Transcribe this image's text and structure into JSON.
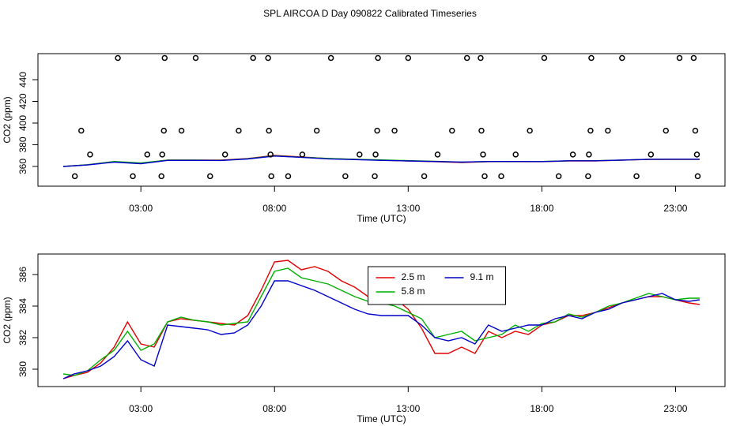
{
  "title": "SPL AIRCOA D  Day 090822  Calibrated Timeseries",
  "chart_data": [
    {
      "type": "line",
      "xlabel": "Time (UTC)",
      "ylabel": "CO2 (ppm)",
      "xlim": [
        -0.85,
        24.85
      ],
      "xticks": [
        {
          "value": 3,
          "label": "03:00"
        },
        {
          "value": 8,
          "label": "08:00"
        },
        {
          "value": 13,
          "label": "13:00"
        },
        {
          "value": 18,
          "label": "18:00"
        },
        {
          "value": 23,
          "label": "23:00"
        }
      ],
      "ylim": [
        341.8,
        464
      ],
      "yticks": [
        360,
        380,
        400,
        420,
        440
      ],
      "x": [
        0.1,
        1,
        2,
        3,
        4,
        5,
        6,
        7,
        8,
        9,
        10,
        11,
        12,
        13,
        14,
        15,
        16,
        17,
        18,
        19,
        20,
        21,
        22,
        23,
        23.9
      ],
      "series": [
        {
          "color": "#e00000",
          "values": [
            360,
            361.5,
            364.4,
            362.9,
            365.8,
            365.8,
            365.8,
            367.3,
            370.2,
            368.7,
            367.3,
            366.5,
            365.8,
            365.1,
            364.4,
            363.6,
            364.4,
            364.4,
            364.4,
            365.1,
            365.1,
            365.8,
            366.5,
            366.5,
            366.5
          ]
        },
        {
          "color": "#00b000",
          "values": [
            360,
            361.6,
            364.6,
            363.2,
            365.9,
            365.8,
            365.6,
            367.1,
            369.8,
            368.5,
            367.4,
            366.6,
            366.0,
            365.4,
            364.8,
            364.0,
            364.5,
            364.6,
            364.6,
            365.2,
            365.3,
            365.9,
            366.6,
            366.6,
            366.6
          ]
        },
        {
          "color": "#0000cc",
          "values": [
            360,
            361.4,
            364.0,
            362.5,
            365.6,
            365.6,
            365.5,
            366.9,
            369.6,
            368.4,
            367.0,
            366.3,
            365.6,
            365.1,
            364.6,
            364.0,
            364.6,
            364.6,
            364.5,
            365.2,
            365.2,
            365.9,
            366.6,
            366.7,
            366.7
          ]
        }
      ],
      "points": {
        "x": [
          2.14,
          3.89,
          5.05,
          7.2,
          7.76,
          10.11,
          11.87,
          13.0,
          15.2,
          15.71,
          18.09,
          19.85,
          21.0,
          23.15,
          23.68,
          0.77,
          3.86,
          4.52,
          6.66,
          7.79,
          9.58,
          11.84,
          12.49,
          14.64,
          15.74,
          17.55,
          19.82,
          20.47,
          22.64,
          23.74,
          1.1,
          3.24,
          3.8,
          6.15,
          7.85,
          9.04,
          11.18,
          11.78,
          14.1,
          15.8,
          17.02,
          19.16,
          19.76,
          22.08,
          23.8,
          0.53,
          2.7,
          3.77,
          5.59,
          7.88,
          8.51,
          10.65,
          11.75,
          13.6,
          15.86,
          16.48,
          18.63,
          19.73,
          21.54,
          23.83
        ],
        "values": [
          460,
          460,
          460,
          460,
          460,
          460,
          460,
          460,
          460,
          460,
          460,
          460,
          460,
          460,
          460,
          393,
          393,
          393,
          393,
          393,
          393,
          393,
          393,
          393,
          393,
          393,
          393,
          393,
          393,
          393,
          371,
          371,
          371,
          371,
          371,
          371,
          371,
          371,
          371,
          371,
          371,
          371,
          371,
          371,
          371,
          351,
          351,
          351,
          351,
          351,
          351,
          351,
          351,
          351,
          351,
          351,
          351,
          351,
          351,
          351
        ]
      }
    },
    {
      "type": "line",
      "xlabel": "Time (UTC)",
      "ylabel": "CO2 (ppm)",
      "xlim": [
        -0.85,
        24.85
      ],
      "xticks": [
        {
          "value": 3,
          "label": "03:00"
        },
        {
          "value": 8,
          "label": "08:00"
        },
        {
          "value": 13,
          "label": "13:00"
        },
        {
          "value": 18,
          "label": "18:00"
        },
        {
          "value": 23,
          "label": "23:00"
        }
      ],
      "ylim": [
        378.9,
        387.3
      ],
      "yticks": [
        380,
        382,
        384,
        386
      ],
      "legend": "top",
      "x": [
        0.1,
        0.5,
        1.0,
        1.5,
        2.0,
        2.5,
        3.0,
        3.5,
        4.0,
        4.5,
        5.0,
        5.5,
        6.0,
        6.5,
        7.0,
        7.5,
        8.0,
        8.5,
        9.0,
        9.5,
        10.0,
        10.5,
        11.0,
        11.5,
        12.0,
        12.5,
        13.0,
        13.5,
        14.0,
        14.5,
        15.0,
        15.5,
        16.0,
        16.5,
        17.0,
        17.5,
        18.0,
        18.5,
        19.0,
        19.5,
        20.0,
        20.5,
        21.0,
        21.5,
        22.0,
        22.5,
        23.0,
        23.5,
        23.9
      ],
      "series": [
        {
          "name": "2.5 m",
          "color": "#e00000",
          "values": [
            379.4,
            379.6,
            379.8,
            380.4,
            381.4,
            383.0,
            381.6,
            381.4,
            383.0,
            383.2,
            383.1,
            383.0,
            382.9,
            382.8,
            383.4,
            385.0,
            386.8,
            386.9,
            386.3,
            386.5,
            386.2,
            385.6,
            385.2,
            384.6,
            384.4,
            384.5,
            383.8,
            382.6,
            381.0,
            381.0,
            381.4,
            381.0,
            382.4,
            382.0,
            382.4,
            382.2,
            382.8,
            383.0,
            383.4,
            383.4,
            383.6,
            383.9,
            384.2,
            384.4,
            384.6,
            384.6,
            384.4,
            384.2,
            384.1
          ]
        },
        {
          "name": "5.8 m",
          "color": "#00b000",
          "values": [
            379.7,
            379.6,
            379.9,
            380.6,
            381.2,
            382.4,
            381.2,
            381.6,
            383.0,
            383.3,
            383.1,
            383.0,
            382.8,
            382.9,
            383.0,
            384.6,
            386.2,
            386.4,
            385.8,
            385.6,
            385.4,
            385.0,
            384.6,
            384.3,
            384.2,
            384.0,
            383.6,
            383.2,
            382.0,
            382.2,
            382.4,
            381.8,
            382.0,
            382.2,
            382.8,
            382.4,
            382.9,
            383.0,
            383.5,
            383.3,
            383.6,
            384.0,
            384.2,
            384.5,
            384.8,
            384.6,
            384.4,
            384.5,
            384.5
          ]
        },
        {
          "name": "9.1 m",
          "color": "#0000cc",
          "values": [
            379.4,
            379.7,
            379.9,
            380.2,
            380.8,
            381.8,
            380.6,
            380.2,
            382.8,
            382.7,
            382.6,
            382.5,
            382.2,
            382.3,
            382.8,
            384.0,
            385.6,
            385.6,
            385.3,
            385.0,
            384.6,
            384.2,
            383.8,
            383.5,
            383.4,
            383.4,
            383.4,
            382.8,
            382.0,
            381.8,
            382.0,
            381.6,
            382.8,
            382.4,
            382.6,
            382.8,
            382.8,
            383.2,
            383.4,
            383.2,
            383.6,
            383.8,
            384.2,
            384.4,
            384.6,
            384.8,
            384.4,
            384.3,
            384.4
          ]
        }
      ]
    }
  ]
}
